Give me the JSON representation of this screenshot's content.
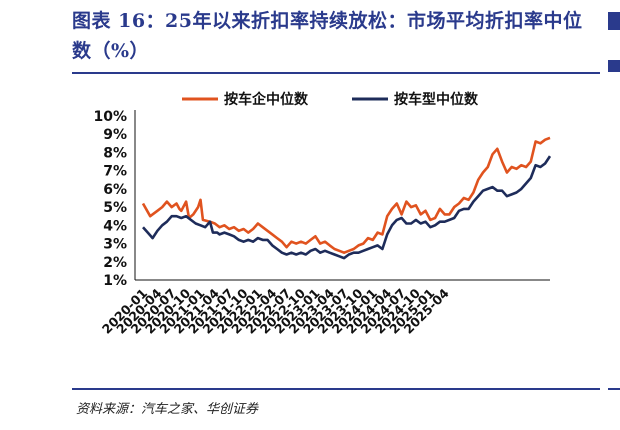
{
  "header": {
    "title": "图表 16：25年以来折扣率持续放松：市场平均折扣率中位数（%）"
  },
  "footer": {
    "source": "资料来源：汽车之家、华创证券"
  },
  "colors": {
    "accent": "#2a3a8c",
    "series1": "#e0531f",
    "series2": "#1e2c5a"
  },
  "chart_data": {
    "type": "line",
    "legend_position": "top",
    "grid": false,
    "y_ticks": [
      "10%",
      "9%",
      "8%",
      "7%",
      "6%",
      "5%",
      "4%",
      "3%",
      "2%",
      "1%"
    ],
    "ylim": [
      1,
      10
    ],
    "x_ticks": [
      "2020-01",
      "2020-04",
      "2020-07",
      "2020-10",
      "2021-01",
      "2021-04",
      "2021-07",
      "2021-10",
      "2022-01",
      "2022-04",
      "2022-07",
      "2022-10",
      "2023-01",
      "2023-04",
      "2023-07",
      "2023-10",
      "2024-01",
      "2024-04",
      "2024-07",
      "2024-10",
      "2025-01",
      "2025-04"
    ],
    "series": [
      {
        "name": "按车企中位数",
        "color": "#e0531f",
        "points": [
          [
            0,
            5.2
          ],
          [
            1.5,
            4.5
          ],
          [
            3,
            4.8
          ],
          [
            4,
            5.0
          ],
          [
            5,
            5.3
          ],
          [
            6,
            5.0
          ],
          [
            7,
            5.2
          ],
          [
            7.6,
            4.9
          ],
          [
            8,
            4.8
          ],
          [
            9,
            5.3
          ],
          [
            9.6,
            4.4
          ],
          [
            10.5,
            4.6
          ],
          [
            11.5,
            5.0
          ],
          [
            12,
            5.4
          ],
          [
            12.5,
            4.3
          ],
          [
            14,
            4.2
          ],
          [
            15,
            4.1
          ],
          [
            16,
            3.9
          ],
          [
            17,
            4.0
          ],
          [
            18,
            3.8
          ],
          [
            19,
            3.9
          ],
          [
            20,
            3.7
          ],
          [
            21,
            3.8
          ],
          [
            22,
            3.6
          ],
          [
            23,
            3.8
          ],
          [
            24,
            4.1
          ],
          [
            25,
            3.9
          ],
          [
            26,
            3.7
          ],
          [
            27,
            3.5
          ],
          [
            28,
            3.3
          ],
          [
            29,
            3.1
          ],
          [
            30,
            2.8
          ],
          [
            31,
            3.1
          ],
          [
            32,
            3.0
          ],
          [
            33,
            3.1
          ],
          [
            34,
            3.0
          ],
          [
            35,
            3.2
          ],
          [
            36,
            3.4
          ],
          [
            37,
            3.0
          ],
          [
            38,
            3.1
          ],
          [
            39,
            2.9
          ],
          [
            40,
            2.7
          ],
          [
            41,
            2.6
          ],
          [
            42,
            2.5
          ],
          [
            43,
            2.6
          ],
          [
            44,
            2.7
          ],
          [
            45,
            2.9
          ],
          [
            46,
            3.0
          ],
          [
            47,
            3.3
          ],
          [
            48,
            3.2
          ],
          [
            49,
            3.6
          ],
          [
            50,
            3.5
          ],
          [
            51,
            4.5
          ],
          [
            52,
            4.9
          ],
          [
            53,
            5.2
          ],
          [
            54,
            4.6
          ],
          [
            55,
            5.3
          ],
          [
            56,
            5.0
          ],
          [
            57,
            5.1
          ],
          [
            58,
            4.6
          ],
          [
            59,
            4.8
          ],
          [
            60,
            4.3
          ],
          [
            61,
            4.4
          ],
          [
            62,
            4.9
          ],
          [
            63,
            4.6
          ],
          [
            64,
            4.6
          ],
          [
            65,
            5.0
          ],
          [
            66,
            5.2
          ],
          [
            67,
            5.5
          ],
          [
            68,
            5.4
          ],
          [
            69,
            5.8
          ],
          [
            70,
            6.5
          ],
          [
            71,
            6.9
          ],
          [
            72,
            7.2
          ],
          [
            73,
            7.9
          ],
          [
            74,
            8.2
          ],
          [
            75,
            7.5
          ],
          [
            76,
            6.9
          ],
          [
            77,
            7.2
          ],
          [
            78,
            7.1
          ],
          [
            79,
            7.3
          ],
          [
            80,
            7.2
          ],
          [
            81,
            7.5
          ],
          [
            82,
            8.6
          ],
          [
            83,
            8.5
          ],
          [
            84,
            8.7
          ],
          [
            85,
            8.8
          ]
        ]
      },
      {
        "name": "按车型中位数",
        "color": "#1e2c5a",
        "points": [
          [
            0,
            3.9
          ],
          [
            1,
            3.6
          ],
          [
            2,
            3.3
          ],
          [
            3,
            3.7
          ],
          [
            4,
            4.0
          ],
          [
            5,
            4.2
          ],
          [
            6,
            4.5
          ],
          [
            7,
            4.5
          ],
          [
            8,
            4.4
          ],
          [
            9,
            4.5
          ],
          [
            10,
            4.3
          ],
          [
            11,
            4.1
          ],
          [
            12,
            4.0
          ],
          [
            13,
            3.9
          ],
          [
            14,
            4.2
          ],
          [
            14.6,
            3.6
          ],
          [
            15.5,
            3.6
          ],
          [
            16,
            3.5
          ],
          [
            17,
            3.6
          ],
          [
            18,
            3.5
          ],
          [
            19,
            3.4
          ],
          [
            20,
            3.2
          ],
          [
            21,
            3.1
          ],
          [
            22,
            3.2
          ],
          [
            23,
            3.1
          ],
          [
            24,
            3.3
          ],
          [
            25,
            3.2
          ],
          [
            26,
            3.2
          ],
          [
            27,
            2.9
          ],
          [
            28,
            2.7
          ],
          [
            29,
            2.5
          ],
          [
            30,
            2.4
          ],
          [
            31,
            2.5
          ],
          [
            32,
            2.4
          ],
          [
            33,
            2.5
          ],
          [
            34,
            2.4
          ],
          [
            35,
            2.6
          ],
          [
            36,
            2.7
          ],
          [
            37,
            2.5
          ],
          [
            38,
            2.6
          ],
          [
            39,
            2.5
          ],
          [
            40,
            2.4
          ],
          [
            41,
            2.3
          ],
          [
            42,
            2.2
          ],
          [
            43,
            2.4
          ],
          [
            44,
            2.5
          ],
          [
            45,
            2.5
          ],
          [
            46,
            2.6
          ],
          [
            47,
            2.7
          ],
          [
            48,
            2.8
          ],
          [
            49,
            2.9
          ],
          [
            50,
            2.7
          ],
          [
            51,
            3.5
          ],
          [
            52,
            4.0
          ],
          [
            53,
            4.3
          ],
          [
            54,
            4.4
          ],
          [
            55,
            4.1
          ],
          [
            56,
            4.1
          ],
          [
            57,
            4.3
          ],
          [
            58,
            4.1
          ],
          [
            59,
            4.2
          ],
          [
            60,
            3.9
          ],
          [
            61,
            4.0
          ],
          [
            62,
            4.2
          ],
          [
            63,
            4.2
          ],
          [
            64,
            4.3
          ],
          [
            65,
            4.4
          ],
          [
            66,
            4.8
          ],
          [
            67,
            4.9
          ],
          [
            68,
            4.9
          ],
          [
            69,
            5.3
          ],
          [
            70,
            5.6
          ],
          [
            71,
            5.9
          ],
          [
            72,
            6.0
          ],
          [
            73,
            6.1
          ],
          [
            74,
            5.9
          ],
          [
            75,
            5.9
          ],
          [
            76,
            5.6
          ],
          [
            77,
            5.7
          ],
          [
            78,
            5.8
          ],
          [
            79,
            6.0
          ],
          [
            80,
            6.3
          ],
          [
            81,
            6.6
          ],
          [
            82,
            7.3
          ],
          [
            83,
            7.2
          ],
          [
            84,
            7.4
          ],
          [
            85,
            7.8
          ]
        ]
      }
    ]
  }
}
